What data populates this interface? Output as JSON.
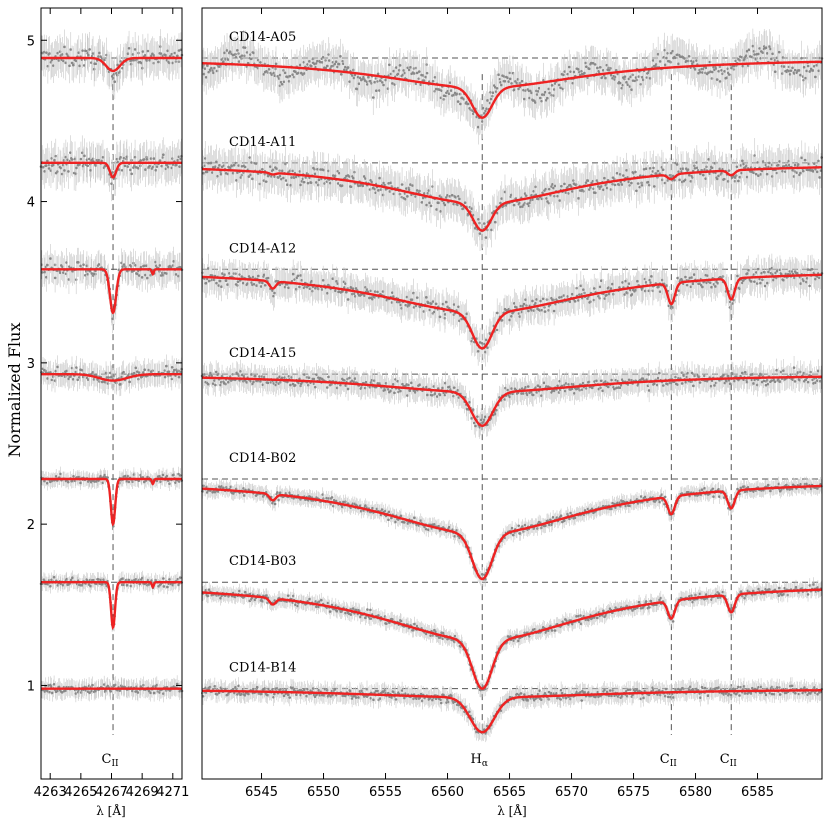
{
  "chart_data": {
    "type": "line",
    "ylabel": "Normalized Flux",
    "colors": {
      "model": "#ee2222",
      "data": "#888888",
      "guide": "#555555"
    },
    "panels": [
      {
        "id": "left",
        "xlabel": "λ [Å]",
        "xlim": [
          4262.4,
          4271.6
        ],
        "ylim": [
          0.42,
          5.2
        ],
        "xticks": [
          4263,
          4265,
          4267,
          4269,
          4271
        ],
        "yticks": [
          1,
          2,
          3,
          4,
          5
        ],
        "lines": [
          {
            "center": 4267.1,
            "label": "C",
            "sub": "II"
          }
        ]
      },
      {
        "id": "right",
        "xlabel": "λ [Å]",
        "xlim": [
          6540.2,
          6590.2
        ],
        "ylim": [
          0.42,
          5.2
        ],
        "xticks": [
          6545,
          6550,
          6555,
          6560,
          6565,
          6570,
          6575,
          6580,
          6585
        ],
        "lines": [
          {
            "center": 6562.8,
            "label": "H",
            "sub": "α"
          },
          {
            "center": 6578.05,
            "label": "C",
            "sub": "II"
          },
          {
            "center": 6582.88,
            "label": "C",
            "sub": "II"
          }
        ]
      }
    ],
    "series": [
      {
        "name": "CD14-A05",
        "continuum": 4.89,
        "left_depth": 0.08,
        "left_sigma": 0.45,
        "halpha_depth": 0.37,
        "halpha_sigma": 6.5,
        "halpha_wings": 0.5,
        "cii_depth": 0.0,
        "noise": 0.06
      },
      {
        "name": "CD14-A11",
        "continuum": 4.24,
        "left_depth": 0.09,
        "left_sigma": 0.2,
        "halpha_depth": 0.42,
        "halpha_sigma": 6.0,
        "halpha_wings": 0.6,
        "cii_depth": 0.03,
        "noise": 0.06
      },
      {
        "name": "CD14-A12",
        "continuum": 3.58,
        "left_depth": 0.27,
        "left_sigma": 0.2,
        "halpha_depth": 0.49,
        "halpha_sigma": 6.5,
        "halpha_wings": 0.55,
        "cii_depth": 0.13,
        "noise": 0.05
      },
      {
        "name": "CD14-A15",
        "continuum": 2.93,
        "left_depth": 0.04,
        "left_sigma": 0.9,
        "halpha_depth": 0.32,
        "halpha_sigma": 7.0,
        "halpha_wings": 0.35,
        "cii_depth": 0.0,
        "noise": 0.04
      },
      {
        "name": "CD14-B02",
        "continuum": 2.28,
        "left_depth": 0.28,
        "left_sigma": 0.14,
        "halpha_depth": 0.62,
        "halpha_sigma": 6.5,
        "halpha_wings": 0.55,
        "cii_depth": 0.11,
        "noise": 0.025
      },
      {
        "name": "CD14-B03",
        "continuum": 1.64,
        "left_depth": 0.28,
        "left_sigma": 0.13,
        "halpha_depth": 0.66,
        "halpha_sigma": 6.5,
        "halpha_wings": 0.55,
        "cii_depth": 0.11,
        "noise": 0.025
      },
      {
        "name": "CD14-B14",
        "continuum": 0.98,
        "left_depth": 0.0,
        "left_sigma": 0.5,
        "halpha_depth": 0.27,
        "halpha_sigma": 8.0,
        "halpha_wings": 0.2,
        "cii_depth": 0.0,
        "noise": 0.03
      }
    ]
  }
}
